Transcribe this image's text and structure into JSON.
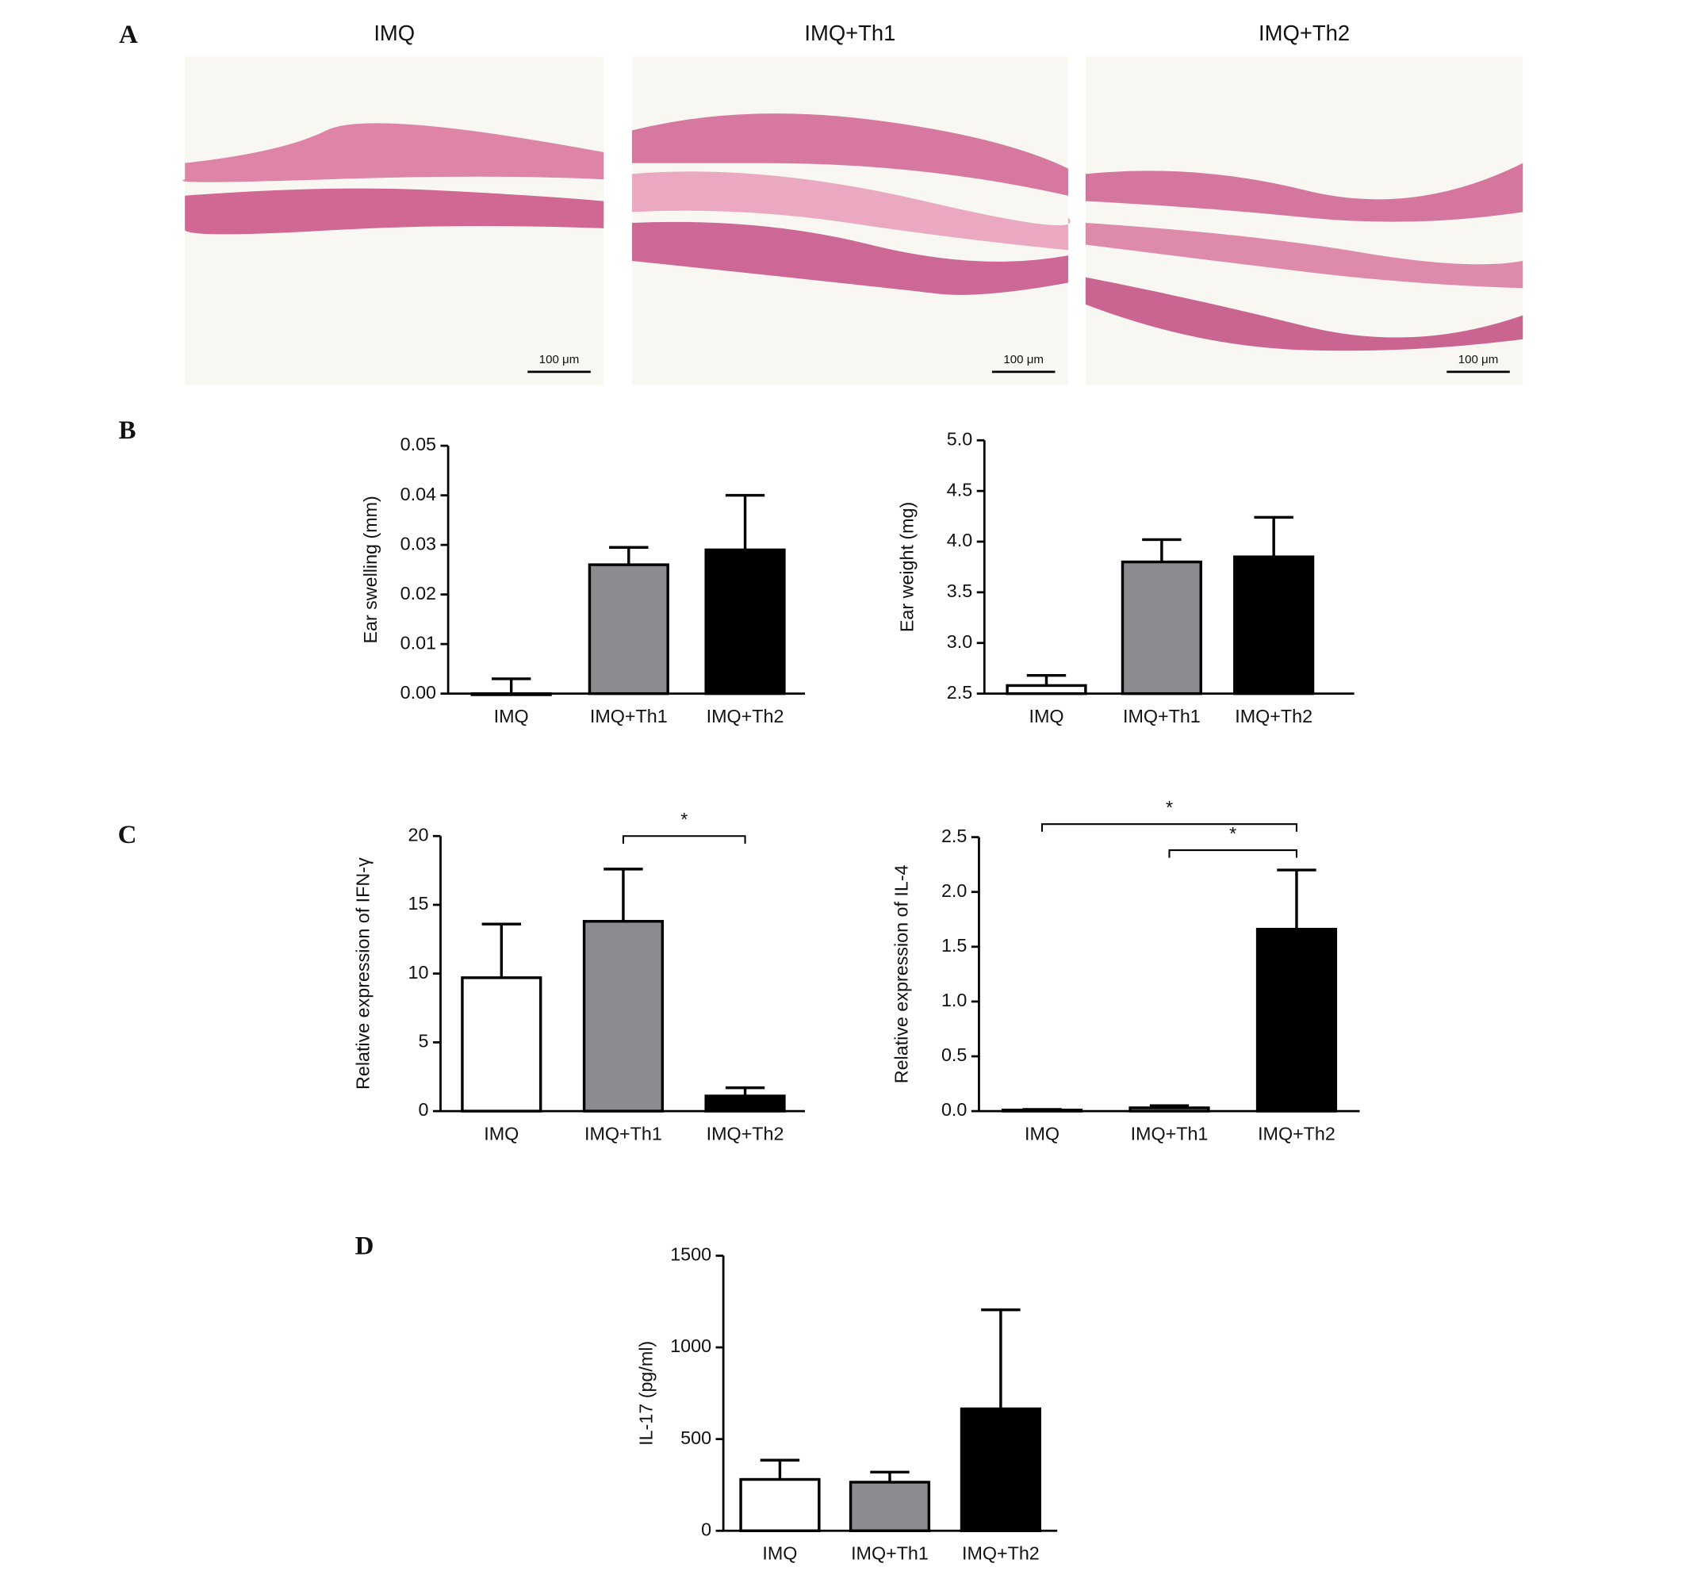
{
  "panel_labels": [
    "A",
    "B",
    "C",
    "D"
  ],
  "micrographs": {
    "titles": [
      "IMQ",
      "IMQ+Th1",
      "IMQ+Th2"
    ],
    "scale_bar": "100 μm"
  },
  "chart_data": [
    {
      "type": "bar",
      "y_label": "Ear swelling (mm)",
      "categories": [
        "IMQ",
        "IMQ+Th1",
        "IMQ+Th2"
      ],
      "values": [
        0.0,
        0.026,
        0.029
      ],
      "errors": [
        0.003,
        0.0035,
        0.011
      ],
      "colors": [
        "#ffffff",
        "#8c8c90",
        "#000000"
      ],
      "ylim": [
        0,
        0.05
      ],
      "yticks": [
        {
          "value": 0,
          "label": "0.00"
        },
        0.01,
        0.02,
        0.03,
        0.04,
        0.05
      ]
    },
    {
      "type": "bar",
      "y_label": "Ear weight (mg)",
      "categories": [
        "IMQ",
        "IMQ+Th1",
        "IMQ+Th2"
      ],
      "values": [
        2.58,
        3.8,
        3.85
      ],
      "errors": [
        0.1,
        0.22,
        0.39
      ],
      "colors": [
        "#ffffff",
        "#8c8c90",
        "#000000"
      ],
      "ylim": [
        2.5,
        5.0
      ],
      "yticks": [
        2.5,
        {
          "value": 3,
          "label": "3.0"
        },
        3.5,
        {
          "value": 4,
          "label": "4.0"
        },
        4.5,
        {
          "value": 5,
          "label": "5.0"
        }
      ]
    },
    {
      "type": "bar",
      "y_label": "Relative expression of IFN-γ",
      "categories": [
        "IMQ",
        "IMQ+Th1",
        "IMQ+Th2"
      ],
      "values": [
        9.7,
        13.8,
        1.1
      ],
      "errors": [
        3.9,
        3.8,
        0.6
      ],
      "colors": [
        "#ffffff",
        "#8c8c90",
        "#000000"
      ],
      "ylim": [
        0,
        20
      ],
      "yticks": [
        0,
        5,
        10,
        15,
        20
      ],
      "brackets": [
        {
          "between": [
            "IMQ+Th1",
            "IMQ+Th2"
          ],
          "label": "*"
        }
      ]
    },
    {
      "type": "bar",
      "y_label": "Relative expression of IL-4",
      "categories": [
        "IMQ",
        "IMQ+Th1",
        "IMQ+Th2"
      ],
      "values": [
        0.01,
        0.03,
        1.66
      ],
      "errors": [
        0.005,
        0.02,
        0.54
      ],
      "colors": [
        "#ffffff",
        "#8c8c90",
        "#000000"
      ],
      "ylim": [
        0,
        2.5
      ],
      "yticks": [
        {
          "value": 0,
          "label": "0.0"
        },
        0.5,
        {
          "value": 1,
          "label": "1.0"
        },
        1.5,
        {
          "value": 2,
          "label": "2.0"
        },
        2.5
      ],
      "brackets": [
        {
          "between": [
            "IMQ",
            "IMQ+Th2"
          ],
          "label": "*"
        },
        {
          "between": [
            "IMQ+Th1",
            "IMQ+Th2"
          ],
          "label": "*"
        }
      ]
    },
    {
      "type": "bar",
      "y_label": "IL-17 (pg/ml)",
      "categories": [
        "IMQ",
        "IMQ+Th1",
        "IMQ+Th2"
      ],
      "values": [
        280,
        265,
        665
      ],
      "errors": [
        105,
        55,
        540
      ],
      "colors": [
        "#ffffff",
        "#8c8c90",
        "#000000"
      ],
      "ylim": [
        0,
        1500
      ],
      "yticks": [
        0,
        500,
        1000,
        1500
      ]
    }
  ]
}
